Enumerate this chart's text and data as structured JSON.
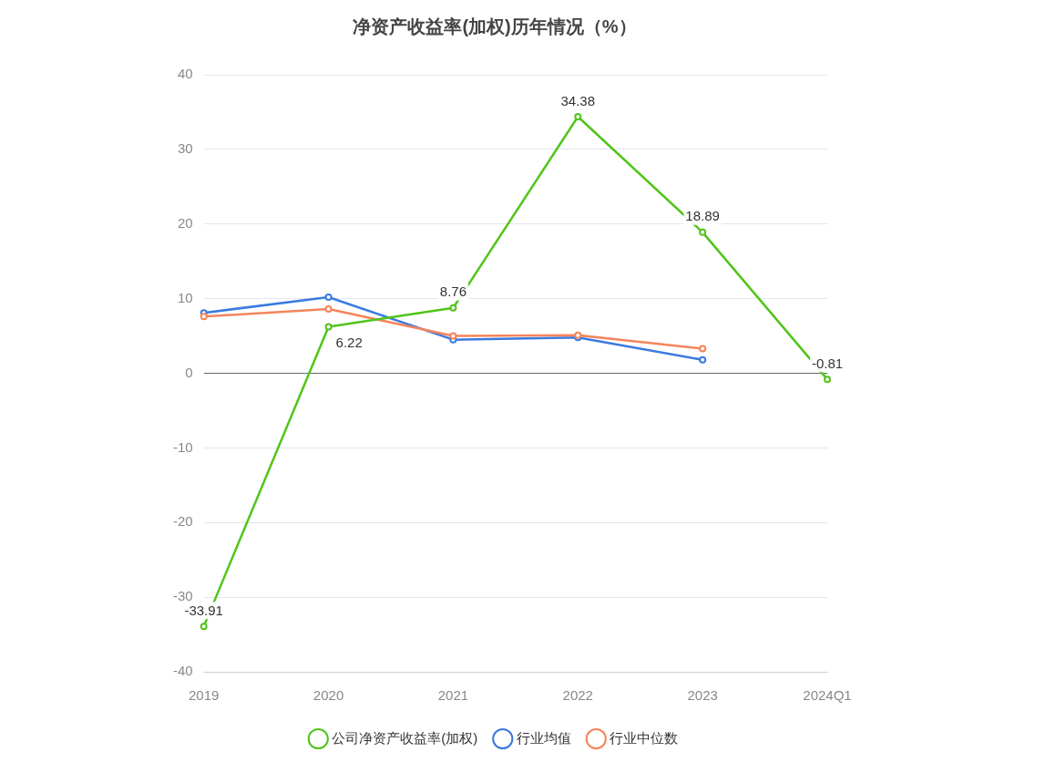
{
  "chart_data": {
    "type": "line",
    "title": "净资产收益率(加权)历年情况（%）",
    "categories": [
      "2019",
      "2020",
      "2021",
      "2022",
      "2023",
      "2024Q1"
    ],
    "series": [
      {
        "name": "公司净资产收益率(加权)",
        "color": "#52c41a",
        "values": [
          -33.91,
          6.22,
          8.76,
          34.38,
          18.89,
          -0.81
        ],
        "value_labels": [
          "-33.91",
          "6.22",
          "8.76",
          "34.38",
          "18.89",
          "-0.81"
        ]
      },
      {
        "name": "行业均值",
        "color": "#3a7ae0",
        "values": [
          8.1,
          10.2,
          4.5,
          4.8,
          1.8,
          null
        ]
      },
      {
        "name": "行业中位数",
        "color": "#f5845a",
        "values": [
          7.6,
          8.6,
          5.0,
          5.1,
          3.3,
          null
        ]
      }
    ],
    "ylim": [
      -40,
      40
    ],
    "yticks": [
      -40,
      -30,
      -20,
      -10,
      0,
      10,
      20,
      30,
      40
    ],
    "grid": "y",
    "legend": "bottom",
    "marker": "circle",
    "line_style": "solid"
  }
}
